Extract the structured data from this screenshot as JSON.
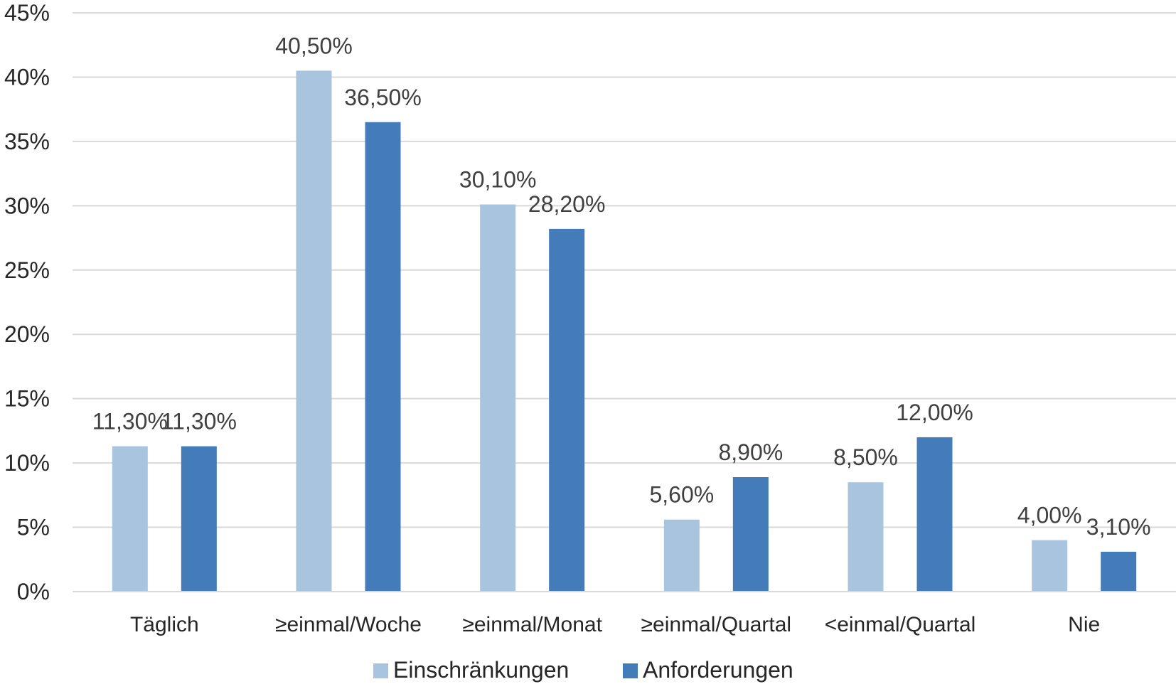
{
  "chart_data": {
    "type": "bar",
    "title": "",
    "xlabel": "",
    "ylabel": "",
    "categories": [
      "Täglich",
      "≥einmal/Woche",
      "≥einmal/Monat",
      "≥einmal/Quartal",
      "<einmal/Quartal",
      "Nie"
    ],
    "series": [
      {
        "name": "Einschränkungen",
        "color": "#a9c4de",
        "values": [
          11.3,
          40.5,
          30.1,
          5.6,
          8.5,
          4.0
        ],
        "labels": [
          "11,30%",
          "40,50%",
          "30,10%",
          "5,60%",
          "8,50%",
          "4,00%"
        ]
      },
      {
        "name": "Anforderungen",
        "color": "#437cb9",
        "values": [
          11.3,
          36.5,
          28.2,
          8.9,
          12.0,
          3.1
        ],
        "labels": [
          "11,30%",
          "36,50%",
          "28,20%",
          "8,90%",
          "12,00%",
          "3,10%"
        ]
      }
    ],
    "ylim": [
      0,
      45
    ],
    "yticks": [
      0,
      5,
      10,
      15,
      20,
      25,
      30,
      35,
      40,
      45
    ],
    "ytick_labels": [
      "0%",
      "5%",
      "10%",
      "15%",
      "20%",
      "25%",
      "30%",
      "35%",
      "40%",
      "45%"
    ],
    "grid": true,
    "gridline_color": "#d9d9d9",
    "legend_position": "bottom"
  }
}
